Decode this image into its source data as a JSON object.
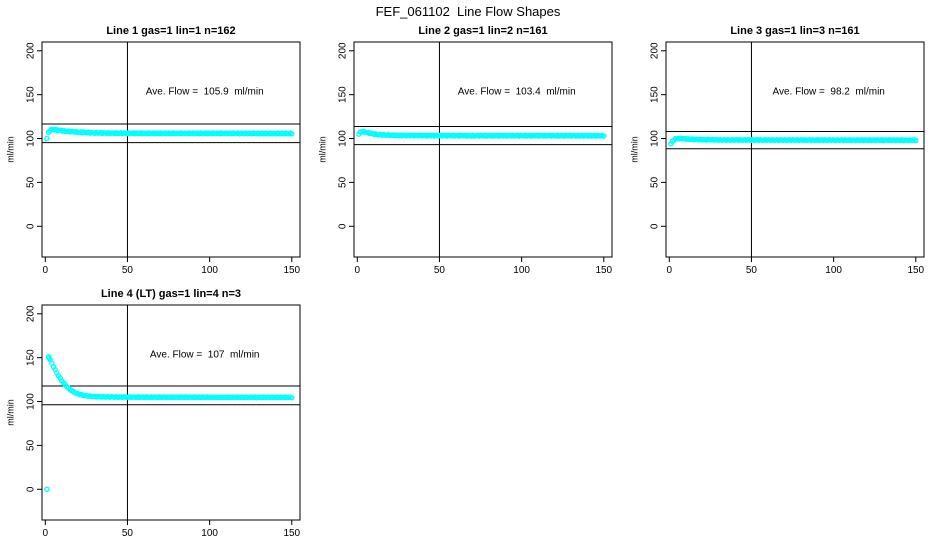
{
  "title": "FEF_061102  Line Flow Shapes",
  "colors": {
    "point": "#00ffff",
    "axis": "#000000",
    "background": "#ffffff"
  },
  "axes": {
    "ylabel": "ml/min",
    "x_ticks": [
      0,
      50,
      100,
      150
    ],
    "y_ticks": [
      0,
      50,
      100,
      150,
      200
    ],
    "x_range": [
      -2,
      155
    ],
    "y_range": [
      -35,
      210
    ],
    "ref_vline_x": 50
  },
  "chart_data": [
    {
      "type": "scatter",
      "title": "Line 1 gas=1 lin=1 n=162",
      "annotation": "Ave. Flow =  105.9  ml/min",
      "avg_flow": 105.9,
      "n": 162,
      "limit_lines": [
        116.5,
        95.3
      ],
      "annotation_pos": [
        97,
        150
      ],
      "series": {
        "x_start": 1,
        "x_end": 150,
        "count": 160,
        "jitter": 0.45,
        "profile": [
          [
            1,
            100.0
          ],
          [
            2,
            107.3
          ],
          [
            3,
            109.6
          ],
          [
            4,
            110.3
          ],
          [
            6,
            110.0
          ],
          [
            8,
            109.4
          ],
          [
            10,
            108.9
          ],
          [
            12,
            108.5
          ],
          [
            15,
            108.0
          ],
          [
            18,
            107.6
          ],
          [
            21,
            107.2
          ],
          [
            25,
            106.9
          ],
          [
            30,
            106.5
          ],
          [
            36,
            106.3
          ],
          [
            42,
            106.1
          ],
          [
            50,
            106.0
          ],
          [
            65,
            105.9
          ],
          [
            85,
            105.9
          ],
          [
            110,
            105.9
          ],
          [
            130,
            105.8
          ],
          [
            150,
            105.8
          ]
        ]
      },
      "extra_points": []
    },
    {
      "type": "scatter",
      "title": "Line 2 gas=1 lin=2 n=161",
      "annotation": "Ave. Flow =  103.4  ml/min",
      "avg_flow": 103.4,
      "n": 161,
      "limit_lines": [
        113.7,
        93.1
      ],
      "annotation_pos": [
        97,
        150
      ],
      "series": {
        "x_start": 1,
        "x_end": 150,
        "count": 160,
        "jitter": 0.4,
        "profile": [
          [
            1,
            105.0
          ],
          [
            2,
            107.3
          ],
          [
            3,
            107.9
          ],
          [
            4,
            107.7
          ],
          [
            6,
            106.8
          ],
          [
            8,
            105.9
          ],
          [
            10,
            105.2
          ],
          [
            12,
            104.7
          ],
          [
            15,
            104.2
          ],
          [
            18,
            103.9
          ],
          [
            22,
            103.7
          ],
          [
            27,
            103.5
          ],
          [
            33,
            103.4
          ],
          [
            42,
            103.3
          ],
          [
            55,
            103.3
          ],
          [
            75,
            103.2
          ],
          [
            100,
            103.2
          ],
          [
            125,
            103.2
          ],
          [
            150,
            103.1
          ]
        ]
      },
      "extra_points": []
    },
    {
      "type": "scatter",
      "title": "Line 3 gas=1 lin=3 n=161",
      "annotation": "Ave. Flow =  98.2  ml/min",
      "avg_flow": 98.2,
      "n": 161,
      "limit_lines": [
        108.0,
        88.4
      ],
      "annotation_pos": [
        97,
        150
      ],
      "series": {
        "x_start": 1,
        "x_end": 150,
        "count": 160,
        "jitter": 0.4,
        "profile": [
          [
            1,
            94.0
          ],
          [
            2,
            97.0
          ],
          [
            3,
            98.9
          ],
          [
            4,
            99.8
          ],
          [
            6,
            100.1
          ],
          [
            8,
            100.0
          ],
          [
            10,
            99.6
          ],
          [
            13,
            99.2
          ],
          [
            16,
            99.0
          ],
          [
            20,
            98.7
          ],
          [
            25,
            98.6
          ],
          [
            32,
            98.4
          ],
          [
            42,
            98.4
          ],
          [
            55,
            98.3
          ],
          [
            75,
            98.3
          ],
          [
            100,
            98.2
          ],
          [
            125,
            98.2
          ],
          [
            150,
            98.1
          ]
        ]
      },
      "extra_points": []
    },
    {
      "type": "scatter",
      "title": "Line 4 (LT) gas=1 lin=4 n=3",
      "annotation": "Ave. Flow =  107  ml/min",
      "avg_flow": 107,
      "n": 3,
      "limit_lines": [
        117.7,
        96.3
      ],
      "annotation_pos": [
        97,
        150
      ],
      "series": {
        "x_start": 3,
        "x_end": 150,
        "count": 147,
        "jitter": 0.3,
        "profile": [
          [
            3,
            147.5
          ],
          [
            4,
            143.5
          ],
          [
            5,
            139.8
          ],
          [
            6,
            136.2
          ],
          [
            7,
            132.8
          ],
          [
            8,
            129.6
          ],
          [
            9,
            126.7
          ],
          [
            10,
            124.0
          ],
          [
            11,
            121.5
          ],
          [
            12,
            119.3
          ],
          [
            13,
            117.3
          ],
          [
            14,
            115.5
          ],
          [
            15,
            113.9
          ],
          [
            16,
            112.5
          ],
          [
            17,
            111.3
          ],
          [
            18,
            110.3
          ],
          [
            19,
            109.4
          ],
          [
            20,
            108.7
          ],
          [
            22,
            107.6
          ],
          [
            24,
            106.9
          ],
          [
            26,
            106.4
          ],
          [
            28,
            106.0
          ],
          [
            30,
            105.7
          ],
          [
            34,
            105.4
          ],
          [
            38,
            105.2
          ],
          [
            44,
            105.1
          ],
          [
            52,
            105.0
          ],
          [
            65,
            104.9
          ],
          [
            85,
            104.9
          ],
          [
            110,
            104.8
          ],
          [
            130,
            104.8
          ],
          [
            150,
            104.7
          ]
        ]
      },
      "extra_points": [
        [
          1,
          0
        ],
        [
          2,
          151
        ],
        [
          2.5,
          149.3
        ]
      ]
    }
  ]
}
